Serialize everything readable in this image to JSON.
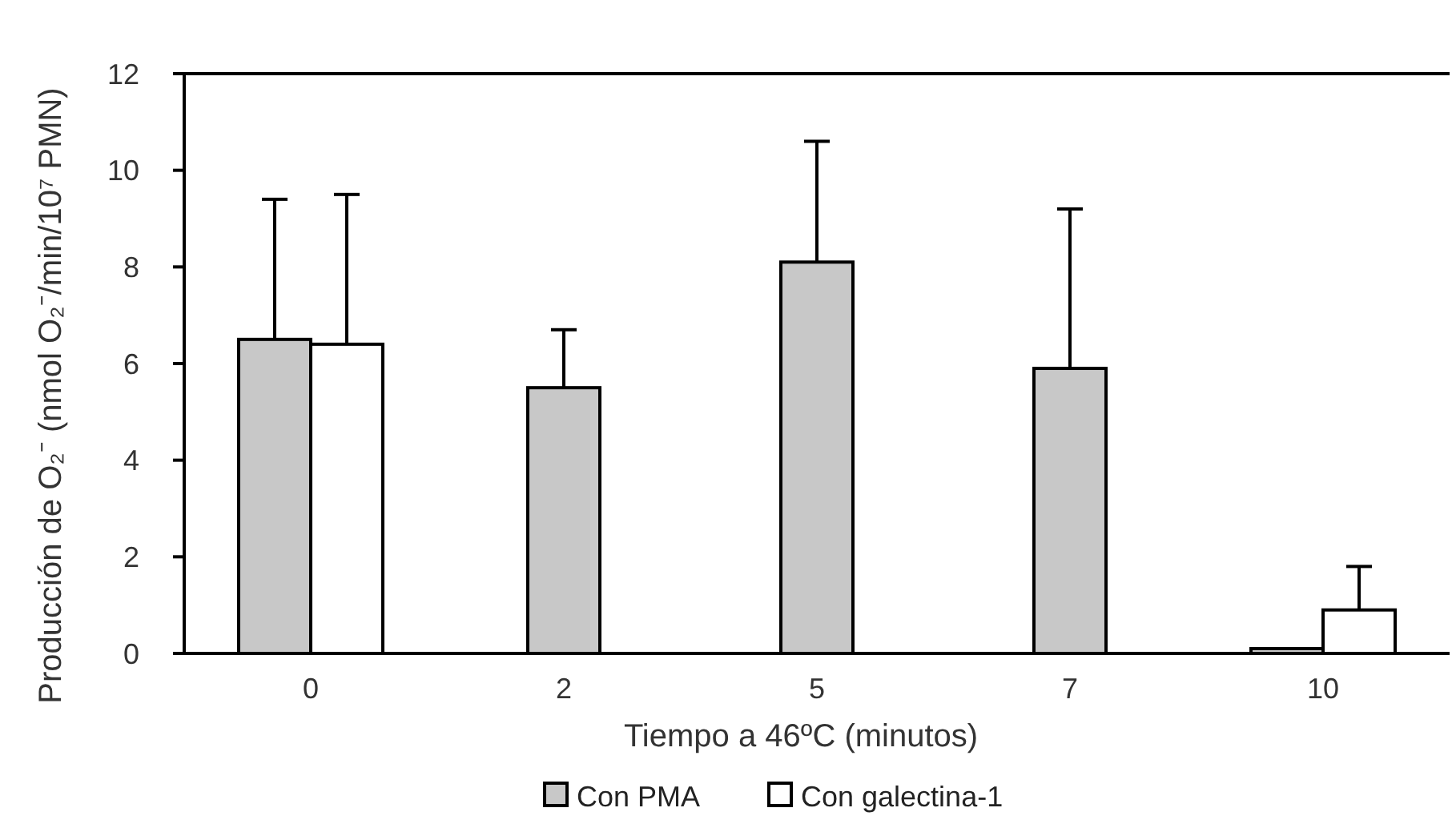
{
  "chart_data": {
    "type": "bar",
    "xlabel": "Tiempo a 46ºC (minutos)",
    "ylabel": "Producción de O₂⁻ (nmol O₂⁻/min/10⁷ PMN)",
    "categories": [
      "0",
      "2",
      "5",
      "7",
      "10"
    ],
    "ylim": [
      0,
      12
    ],
    "yticks": [
      0,
      2,
      4,
      6,
      8,
      10,
      12
    ],
    "grid": false,
    "legend": "bottom",
    "series": [
      {
        "name": "Con PMA",
        "color": "#c8c8c8",
        "values": [
          6.5,
          5.5,
          8.1,
          5.9,
          0.1
        ],
        "errors": [
          [
            6.5,
            9.4
          ],
          [
            5.5,
            6.7
          ],
          [
            8.1,
            10.6
          ],
          [
            5.9,
            9.2
          ],
          null
        ]
      },
      {
        "name": "Con galectina-1",
        "color": "#ffffff",
        "values": [
          6.4,
          null,
          null,
          null,
          0.9
        ],
        "errors": [
          [
            6.4,
            9.5
          ],
          null,
          null,
          null,
          [
            0.9,
            1.8
          ]
        ]
      }
    ]
  }
}
